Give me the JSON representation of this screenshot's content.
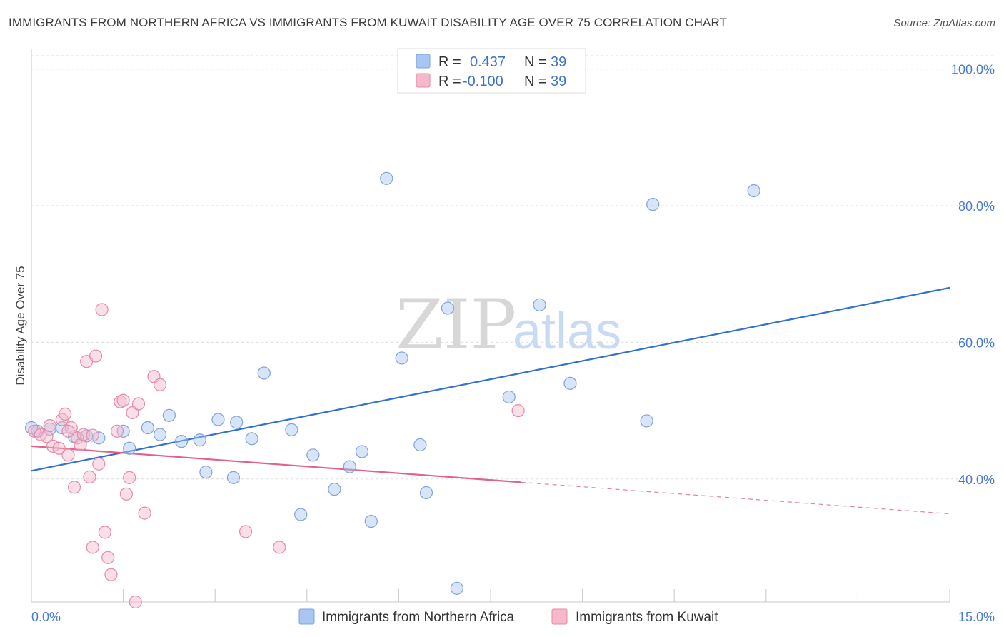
{
  "title": "IMMIGRANTS FROM NORTHERN AFRICA VS IMMIGRANTS FROM KUWAIT DISABILITY AGE OVER 75 CORRELATION CHART",
  "source": "Source: ZipAtlas.com",
  "watermark": {
    "zip": "ZIP",
    "atlas": "atlas"
  },
  "legend": {
    "rows": [
      {
        "r_label": "R =",
        "r_value": "0.437",
        "n_label": "N =",
        "n_value": "39",
        "color": "#a9c6f0"
      },
      {
        "r_label": "R =",
        "r_value": "-0.100",
        "n_label": "N =",
        "n_value": "39",
        "color": "#f5b9cb"
      }
    ]
  },
  "chart_data": {
    "type": "scatter",
    "xlabel": "",
    "ylabel": "Disability Age Over 75",
    "xlim": [
      0,
      15
    ],
    "ylim": [
      22,
      103
    ],
    "x_tick_labels": [
      {
        "value": 0,
        "label": "0.0%"
      },
      {
        "value": 15,
        "label": "15.0%"
      }
    ],
    "y_tick_labels": [
      {
        "value": 100,
        "label": "100.0%"
      },
      {
        "value": 80,
        "label": "80.0%"
      },
      {
        "value": 60,
        "label": "60.0%"
      },
      {
        "value": 40,
        "label": "40.0%"
      }
    ],
    "grid": "horizontal dashed",
    "legend_placement": "top-center",
    "series": [
      {
        "name": "Immigrants from Northern Africa",
        "color": "#a9c6f0",
        "stroke": "#7ea3db",
        "trend": {
          "x": [
            0,
            15
          ],
          "y": [
            41.2,
            68.0
          ],
          "color": "#2f72d0",
          "dashed_from": null
        },
        "points": [
          [
            0.1,
            47.0
          ],
          [
            0.3,
            47.3
          ],
          [
            0.5,
            47.5
          ],
          [
            0.7,
            46.2
          ],
          [
            0.9,
            46.3
          ],
          [
            1.1,
            46.0
          ],
          [
            1.5,
            47.0
          ],
          [
            1.6,
            44.5
          ],
          [
            1.9,
            47.5
          ],
          [
            2.1,
            46.5
          ],
          [
            2.25,
            49.3
          ],
          [
            2.45,
            45.5
          ],
          [
            2.75,
            45.7
          ],
          [
            2.85,
            41.0
          ],
          [
            3.05,
            48.7
          ],
          [
            3.3,
            40.2
          ],
          [
            3.35,
            48.3
          ],
          [
            3.6,
            45.9
          ],
          [
            3.8,
            55.5
          ],
          [
            4.25,
            47.2
          ],
          [
            4.4,
            34.8
          ],
          [
            4.6,
            43.5
          ],
          [
            4.95,
            38.5
          ],
          [
            5.2,
            41.8
          ],
          [
            5.4,
            44.0
          ],
          [
            5.55,
            33.8
          ],
          [
            5.8,
            84.0
          ],
          [
            6.05,
            57.7
          ],
          [
            6.35,
            45.0
          ],
          [
            6.45,
            38.0
          ],
          [
            6.8,
            65.0
          ],
          [
            6.95,
            24.0
          ],
          [
            7.8,
            52.0
          ],
          [
            8.3,
            65.5
          ],
          [
            8.8,
            54.0
          ],
          [
            10.05,
            48.5
          ],
          [
            10.15,
            80.2
          ],
          [
            11.8,
            82.2
          ],
          [
            0.0,
            47.5
          ]
        ]
      },
      {
        "name": "Immigrants from Kuwait",
        "color": "#f5b9cb",
        "stroke": "#e68aa6",
        "trend": {
          "x": [
            0,
            15
          ],
          "y": [
            44.8,
            34.9
          ],
          "color": "#e0628d",
          "dashed_from": 8.0
        },
        "points": [
          [
            0.05,
            47.0
          ],
          [
            0.15,
            46.5
          ],
          [
            0.25,
            46.2
          ],
          [
            0.35,
            44.8
          ],
          [
            0.45,
            44.5
          ],
          [
            0.5,
            48.7
          ],
          [
            0.55,
            49.5
          ],
          [
            0.6,
            43.5
          ],
          [
            0.65,
            47.5
          ],
          [
            0.7,
            38.8
          ],
          [
            0.75,
            46.0
          ],
          [
            0.8,
            45.0
          ],
          [
            0.85,
            46.5
          ],
          [
            0.9,
            57.2
          ],
          [
            0.95,
            40.3
          ],
          [
            1.0,
            30.0
          ],
          [
            1.05,
            58.0
          ],
          [
            1.1,
            42.2
          ],
          [
            1.15,
            64.8
          ],
          [
            1.2,
            32.2
          ],
          [
            1.25,
            28.5
          ],
          [
            1.3,
            26.0
          ],
          [
            1.4,
            47.0
          ],
          [
            1.45,
            51.3
          ],
          [
            1.5,
            51.5
          ],
          [
            1.55,
            37.8
          ],
          [
            1.6,
            40.2
          ],
          [
            1.65,
            49.7
          ],
          [
            1.7,
            22.0
          ],
          [
            1.75,
            51.0
          ],
          [
            1.85,
            35.0
          ],
          [
            2.0,
            55.0
          ],
          [
            2.1,
            53.8
          ],
          [
            3.5,
            32.3
          ],
          [
            4.05,
            30.0
          ],
          [
            7.95,
            50.0
          ],
          [
            0.3,
            47.8
          ],
          [
            0.6,
            47.0
          ],
          [
            1.0,
            46.4
          ]
        ]
      }
    ]
  }
}
